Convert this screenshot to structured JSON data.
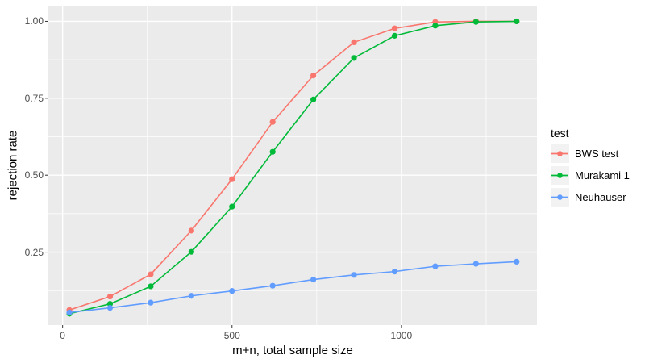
{
  "figure": {
    "background": "#ffffff",
    "panel_background": "#ebebeb",
    "grid_color": "#ffffff",
    "tick_mark_color": "#333333",
    "tick_label_color": "#4d4d4d",
    "axis_title_color": "#000000"
  },
  "legend": {
    "title": "test",
    "key_background": "#f2f2f2"
  },
  "chart_data": {
    "type": "line",
    "title": "",
    "xlabel": "m+n, total sample size",
    "ylabel": "rejection rate",
    "grid": true,
    "legend_position": "right",
    "x": [
      20,
      140,
      260,
      380,
      500,
      620,
      740,
      860,
      980,
      1100,
      1220,
      1340
    ],
    "series": [
      {
        "name": "BWS test",
        "color": "#F8766D",
        "values": [
          0.062,
          0.106,
          0.178,
          0.32,
          0.487,
          0.673,
          0.824,
          0.932,
          0.977,
          0.998,
          1.0,
          1.0
        ]
      },
      {
        "name": "Murakami 1",
        "color": "#00BA38",
        "values": [
          0.05,
          0.082,
          0.139,
          0.251,
          0.398,
          0.576,
          0.746,
          0.881,
          0.953,
          0.986,
          0.998,
          1.0
        ]
      },
      {
        "name": "Neuhauser",
        "color": "#619CFF",
        "values": [
          0.054,
          0.069,
          0.086,
          0.108,
          0.124,
          0.141,
          0.161,
          0.176,
          0.187,
          0.204,
          0.212,
          0.219
        ]
      }
    ],
    "x_ticks": [
      "0",
      "500",
      "1000"
    ],
    "x_tick_values": [
      0,
      500,
      1000
    ],
    "x_minor_values": [
      250,
      750,
      1250
    ],
    "y_ticks": [
      "1.00",
      "0.75",
      "0.50",
      "0.25"
    ],
    "y_tick_values": [
      1.0,
      0.75,
      0.5,
      0.25
    ],
    "y_minor_values": [
      0.875,
      0.625,
      0.375,
      0.125
    ],
    "xlim": [
      -42,
      1400
    ],
    "ylim": [
      0.013,
      1.051
    ]
  }
}
